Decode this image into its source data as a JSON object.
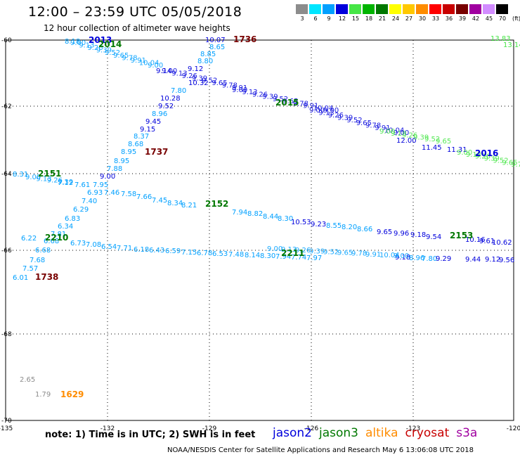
{
  "header": {
    "title": "12:00 – 23:59 UTC 05/05/2018",
    "subtitle": "12 hour collection of altimeter wave heights"
  },
  "color_scale": {
    "unit": "(ft)",
    "bins": [
      {
        "label": "3",
        "color": "#8c8c8c"
      },
      {
        "label": "6",
        "color": "#00e6ff"
      },
      {
        "label": "9",
        "color": "#00a0ff"
      },
      {
        "label": "12",
        "color": "#0000dc"
      },
      {
        "label": "15",
        "color": "#46e646"
      },
      {
        "label": "18",
        "color": "#00b400"
      },
      {
        "label": "21",
        "color": "#007800"
      },
      {
        "label": "24",
        "color": "#ffff00"
      },
      {
        "label": "27",
        "color": "#ffc800"
      },
      {
        "label": "30",
        "color": "#ff8c00"
      },
      {
        "label": "33",
        "color": "#ff0000"
      },
      {
        "label": "36",
        "color": "#c80000"
      },
      {
        "label": "39",
        "color": "#780000"
      },
      {
        "label": "42",
        "color": "#a000a0"
      },
      {
        "label": "45",
        "color": "#d28cff"
      },
      {
        "label": "70",
        "color": "#000000"
      }
    ]
  },
  "axes": {
    "lon_ticks": [
      "-135",
      "-132",
      "-129",
      "-126",
      "-123",
      "-120"
    ],
    "lat_ticks": [
      "-60",
      "-62",
      "-64",
      "-66",
      "-68",
      "-70"
    ]
  },
  "passes": [
    {
      "label": "2013",
      "color": "#0000dc"
    },
    {
      "label": "2014",
      "color": "#007800"
    },
    {
      "label": "1736",
      "color": "#780000"
    },
    {
      "label": "2015",
      "color": "#007800"
    },
    {
      "label": "2016",
      "color": "#0000dc"
    },
    {
      "label": "1737",
      "color": "#780000"
    },
    {
      "label": "2151",
      "color": "#007800"
    },
    {
      "label": "2152",
      "color": "#007800"
    },
    {
      "label": "2210",
      "color": "#007800"
    },
    {
      "label": "2211",
      "color": "#007800"
    },
    {
      "label": "2153",
      "color": "#007800"
    },
    {
      "label": "1738",
      "color": "#780000"
    },
    {
      "label": "1629",
      "color": "#ff8c00"
    }
  ],
  "observations": [
    {
      "v": "8.18",
      "c": "#00a0ff"
    },
    {
      "v": "10.07",
      "c": "#0000dc"
    },
    {
      "v": "8.65",
      "c": "#00a0ff"
    },
    {
      "v": "8.85",
      "c": "#00a0ff"
    },
    {
      "v": "8.80",
      "c": "#00a0ff"
    },
    {
      "v": "9.12",
      "c": "#0000dc"
    },
    {
      "v": "9.14",
      "c": "#0000dc"
    },
    {
      "v": "10.32",
      "c": "#0000dc"
    },
    {
      "v": "7.80",
      "c": "#00a0ff"
    },
    {
      "v": "10.28",
      "c": "#0000dc"
    },
    {
      "v": "9.52",
      "c": "#0000dc"
    },
    {
      "v": "8.96",
      "c": "#00a0ff"
    },
    {
      "v": "9.45",
      "c": "#0000dc"
    },
    {
      "v": "9.15",
      "c": "#0000dc"
    },
    {
      "v": "8.37",
      "c": "#00a0ff"
    },
    {
      "v": "8.68",
      "c": "#00a0ff"
    },
    {
      "v": "8.95",
      "c": "#00a0ff"
    },
    {
      "v": "8.95",
      "c": "#00a0ff"
    },
    {
      "v": "7.88",
      "c": "#00a0ff"
    },
    {
      "v": "9.00",
      "c": "#0000dc"
    },
    {
      "v": "8.31",
      "c": "#00a0ff"
    },
    {
      "v": "7.61",
      "c": "#00a0ff"
    },
    {
      "v": "7.95",
      "c": "#00a0ff"
    },
    {
      "v": "7.12",
      "c": "#00a0ff"
    },
    {
      "v": "6.93",
      "c": "#00a0ff"
    },
    {
      "v": "7.46",
      "c": "#00a0ff"
    },
    {
      "v": "7.58",
      "c": "#00a0ff"
    },
    {
      "v": "7.66",
      "c": "#00a0ff"
    },
    {
      "v": "7.45",
      "c": "#00a0ff"
    },
    {
      "v": "8.34",
      "c": "#00a0ff"
    },
    {
      "v": "8.21",
      "c": "#00a0ff"
    },
    {
      "v": "7.40",
      "c": "#00a0ff"
    },
    {
      "v": "6.29",
      "c": "#00a0ff"
    },
    {
      "v": "6.83",
      "c": "#00a0ff"
    },
    {
      "v": "6.34",
      "c": "#00a0ff"
    },
    {
      "v": "7.94",
      "c": "#00a0ff"
    },
    {
      "v": "8.82",
      "c": "#00a0ff"
    },
    {
      "v": "8.44",
      "c": "#00a0ff"
    },
    {
      "v": "8.30",
      "c": "#00a0ff"
    },
    {
      "v": "10.53",
      "c": "#0000dc"
    },
    {
      "v": "9.23",
      "c": "#0000dc"
    },
    {
      "v": "8.55",
      "c": "#00a0ff"
    },
    {
      "v": "8.20",
      "c": "#00a0ff"
    },
    {
      "v": "8.66",
      "c": "#00a0ff"
    },
    {
      "v": "9.65",
      "c": "#0000dc"
    },
    {
      "v": "9.96",
      "c": "#0000dc"
    },
    {
      "v": "9.18",
      "c": "#0000dc"
    },
    {
      "v": "9.54",
      "c": "#0000dc"
    },
    {
      "v": "10.16",
      "c": "#0000dc"
    },
    {
      "v": "9.61",
      "c": "#0000dc"
    },
    {
      "v": "10.62",
      "c": "#0000dc"
    },
    {
      "v": "6.22",
      "c": "#00a0ff"
    },
    {
      "v": "7.81",
      "c": "#00a0ff"
    },
    {
      "v": "6.68",
      "c": "#00a0ff"
    },
    {
      "v": "6.68",
      "c": "#00a0ff"
    },
    {
      "v": "7.68",
      "c": "#00a0ff"
    },
    {
      "v": "7.57",
      "c": "#00a0ff"
    },
    {
      "v": "6.01",
      "c": "#00a0ff"
    },
    {
      "v": "6.73",
      "c": "#00a0ff"
    },
    {
      "v": "7.08",
      "c": "#00a0ff"
    },
    {
      "v": "6.54",
      "c": "#00a0ff"
    },
    {
      "v": "7.71",
      "c": "#00a0ff"
    },
    {
      "v": "6.18",
      "c": "#00a0ff"
    },
    {
      "v": "6.43",
      "c": "#00a0ff"
    },
    {
      "v": "6.59",
      "c": "#00a0ff"
    },
    {
      "v": "7.15",
      "c": "#00a0ff"
    },
    {
      "v": "6.78",
      "c": "#00a0ff"
    },
    {
      "v": "6.53",
      "c": "#00a0ff"
    },
    {
      "v": "7.48",
      "c": "#00a0ff"
    },
    {
      "v": "8.14",
      "c": "#00a0ff"
    },
    {
      "v": "8.30",
      "c": "#00a0ff"
    },
    {
      "v": "7.94",
      "c": "#00a0ff"
    },
    {
      "v": "7.74",
      "c": "#00a0ff"
    },
    {
      "v": "7.97",
      "c": "#00a0ff"
    },
    {
      "v": "9.18",
      "c": "#0000dc"
    },
    {
      "v": "8.96",
      "c": "#00a0ff"
    },
    {
      "v": "7.80",
      "c": "#00a0ff"
    },
    {
      "v": "9.29",
      "c": "#0000dc"
    },
    {
      "v": "9.44",
      "c": "#0000dc"
    },
    {
      "v": "9.12",
      "c": "#0000dc"
    },
    {
      "v": "9.56",
      "c": "#0000dc"
    },
    {
      "v": "12.00",
      "c": "#0000dc"
    },
    {
      "v": "11.45",
      "c": "#0000dc"
    },
    {
      "v": "11.31",
      "c": "#0000dc"
    },
    {
      "v": "13.83",
      "c": "#46e646"
    },
    {
      "v": "13.14",
      "c": "#46e646"
    },
    {
      "v": "2.65",
      "c": "#8c8c8c"
    },
    {
      "v": "1.79",
      "c": "#8c8c8c"
    }
  ],
  "note": "note: 1) Time is in UTC; 2) SWH is in feet",
  "satellites": [
    {
      "name": "jason2",
      "color": "#0000dc"
    },
    {
      "name": "jason3",
      "color": "#007800"
    },
    {
      "name": "altika",
      "color": "#ff8c00"
    },
    {
      "name": "cryosat",
      "color": "#c80000"
    },
    {
      "name": "s3a",
      "color": "#a000a0"
    }
  ],
  "credit": "NOAA/NESDIS Center for Satellite Applications and Research   May  6 13:06:08 UTC 2018"
}
